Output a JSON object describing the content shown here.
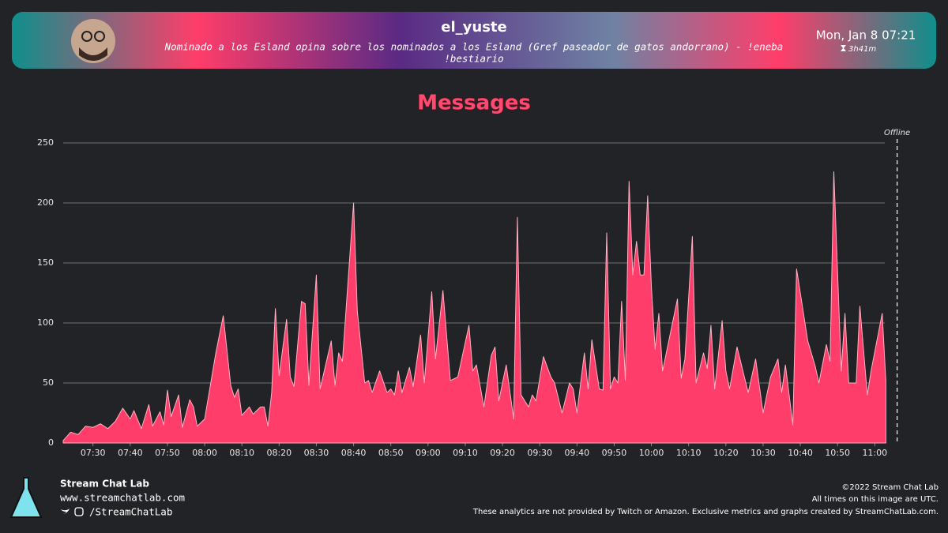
{
  "header": {
    "title": "el_yuste",
    "subtitle_lines": [
      "Nominado a los Esland opina sobre los nominados a los Esland (Gref paseador de gatos andorrano) - !eneba",
      "!bestiario"
    ],
    "date": "Mon, Jan 8 07:21",
    "duration": "3h41m"
  },
  "chart_data": {
    "type": "area",
    "title": "Messages",
    "x": [
      "07:22",
      "07:24",
      "07:26",
      "07:28",
      "07:30",
      "07:32",
      "07:34",
      "07:36",
      "07:38",
      "07:40",
      "07:41",
      "07:43",
      "07:45",
      "07:46",
      "07:48",
      "07:49",
      "07:50",
      "07:51",
      "07:53",
      "07:54",
      "07:56",
      "07:57",
      "07:58",
      "08:00",
      "08:03",
      "08:05",
      "08:07",
      "08:08",
      "08:09",
      "08:10",
      "08:12",
      "08:13",
      "08:15",
      "08:16",
      "08:17",
      "08:18",
      "08:19",
      "08:20",
      "08:22",
      "08:23",
      "08:24",
      "08:26",
      "08:27",
      "08:28",
      "08:30",
      "08:31",
      "08:34",
      "08:35",
      "08:36",
      "08:37",
      "08:40",
      "08:41",
      "08:43",
      "08:44",
      "08:45",
      "08:47",
      "08:49",
      "08:50",
      "08:51",
      "08:52",
      "08:53",
      "08:55",
      "08:56",
      "08:58",
      "08:59",
      "09:01",
      "09:02",
      "09:04",
      "09:06",
      "09:08",
      "09:11",
      "09:12",
      "09:13",
      "09:15",
      "09:17",
      "09:18",
      "09:19",
      "09:21",
      "09:23",
      "09:24",
      "09:25",
      "09:27",
      "09:28",
      "09:29",
      "09:31",
      "09:33",
      "09:34",
      "09:36",
      "09:38",
      "09:39",
      "09:40",
      "09:42",
      "09:43",
      "09:44",
      "09:46",
      "09:47",
      "09:48",
      "09:49",
      "09:50",
      "09:51",
      "09:52",
      "09:53",
      "09:54",
      "09:55",
      "09:56",
      "09:57",
      "09:58",
      "09:59",
      "10:00",
      "10:01",
      "10:02",
      "10:03",
      "10:05",
      "10:07",
      "10:08",
      "10:09",
      "10:11",
      "10:12",
      "10:14",
      "10:15",
      "10:16",
      "10:17",
      "10:19",
      "10:20",
      "10:21",
      "10:23",
      "10:26",
      "10:28",
      "10:30",
      "10:32",
      "10:34",
      "10:35",
      "10:36",
      "10:38",
      "10:39",
      "10:42",
      "10:44",
      "10:45",
      "10:47",
      "10:48",
      "10:49",
      "10:51",
      "10:52",
      "10:53",
      "10:55",
      "10:56",
      "10:58",
      "10:59",
      "11:02",
      "11:03"
    ],
    "series": [
      {
        "name": "Messages",
        "color": "#ff3d6a",
        "values": [
          2,
          9,
          7,
          14,
          13,
          16,
          12,
          18,
          29,
          20,
          27,
          12,
          32,
          14,
          26,
          15,
          44,
          22,
          40,
          13,
          36,
          30,
          14,
          20,
          75,
          106,
          48,
          38,
          45,
          23,
          30,
          24,
          30,
          30,
          14,
          42,
          112,
          56,
          103,
          55,
          47,
          118,
          116,
          48,
          140,
          45,
          85,
          48,
          75,
          68,
          200,
          110,
          50,
          52,
          42,
          60,
          42,
          45,
          40,
          60,
          42,
          63,
          47,
          90,
          50,
          126,
          70,
          127,
          52,
          55,
          98,
          60,
          65,
          30,
          73,
          80,
          35,
          65,
          20,
          188,
          40,
          30,
          40,
          35,
          72,
          55,
          50,
          25,
          50,
          45,
          25,
          75,
          45,
          86,
          45,
          44,
          175,
          45,
          55,
          50,
          118,
          52,
          218,
          140,
          168,
          140,
          140,
          206,
          130,
          78,
          108,
          60,
          90,
          120,
          54,
          70,
          172,
          50,
          75,
          62,
          98,
          45,
          102,
          60,
          45,
          80,
          42,
          70,
          25,
          55,
          70,
          42,
          65,
          15,
          145,
          85,
          64,
          50,
          82,
          68,
          226,
          60,
          108,
          50,
          50,
          114,
          40,
          60,
          108,
          50
        ]
      }
    ],
    "xlim": [
      "07:22",
      "11:08"
    ],
    "xticks": [
      "07:30",
      "07:40",
      "07:50",
      "08:00",
      "08:10",
      "08:20",
      "08:30",
      "08:40",
      "08:50",
      "09:00",
      "09:10",
      "09:20",
      "09:30",
      "09:40",
      "09:50",
      "10:00",
      "10:10",
      "10:20",
      "10:30",
      "10:40",
      "10:50",
      "11:00"
    ],
    "ylim": [
      0,
      250
    ],
    "yticks": [
      0,
      50,
      100,
      150,
      200,
      250
    ],
    "grid": true,
    "annotations": [
      {
        "text": "Offline",
        "x": "11:06"
      }
    ]
  },
  "footer": {
    "brand": "Stream Chat Lab",
    "url": "www.streamchatlab.com",
    "social": "/StreamChatLab",
    "copyright": "©2022 Stream Chat Lab",
    "timezone_note": "All times on this image are UTC.",
    "disclaimer": "These analytics are not provided by Twitch or Amazon. Exclusive metrics and graphs created by StreamChatLab.com."
  }
}
